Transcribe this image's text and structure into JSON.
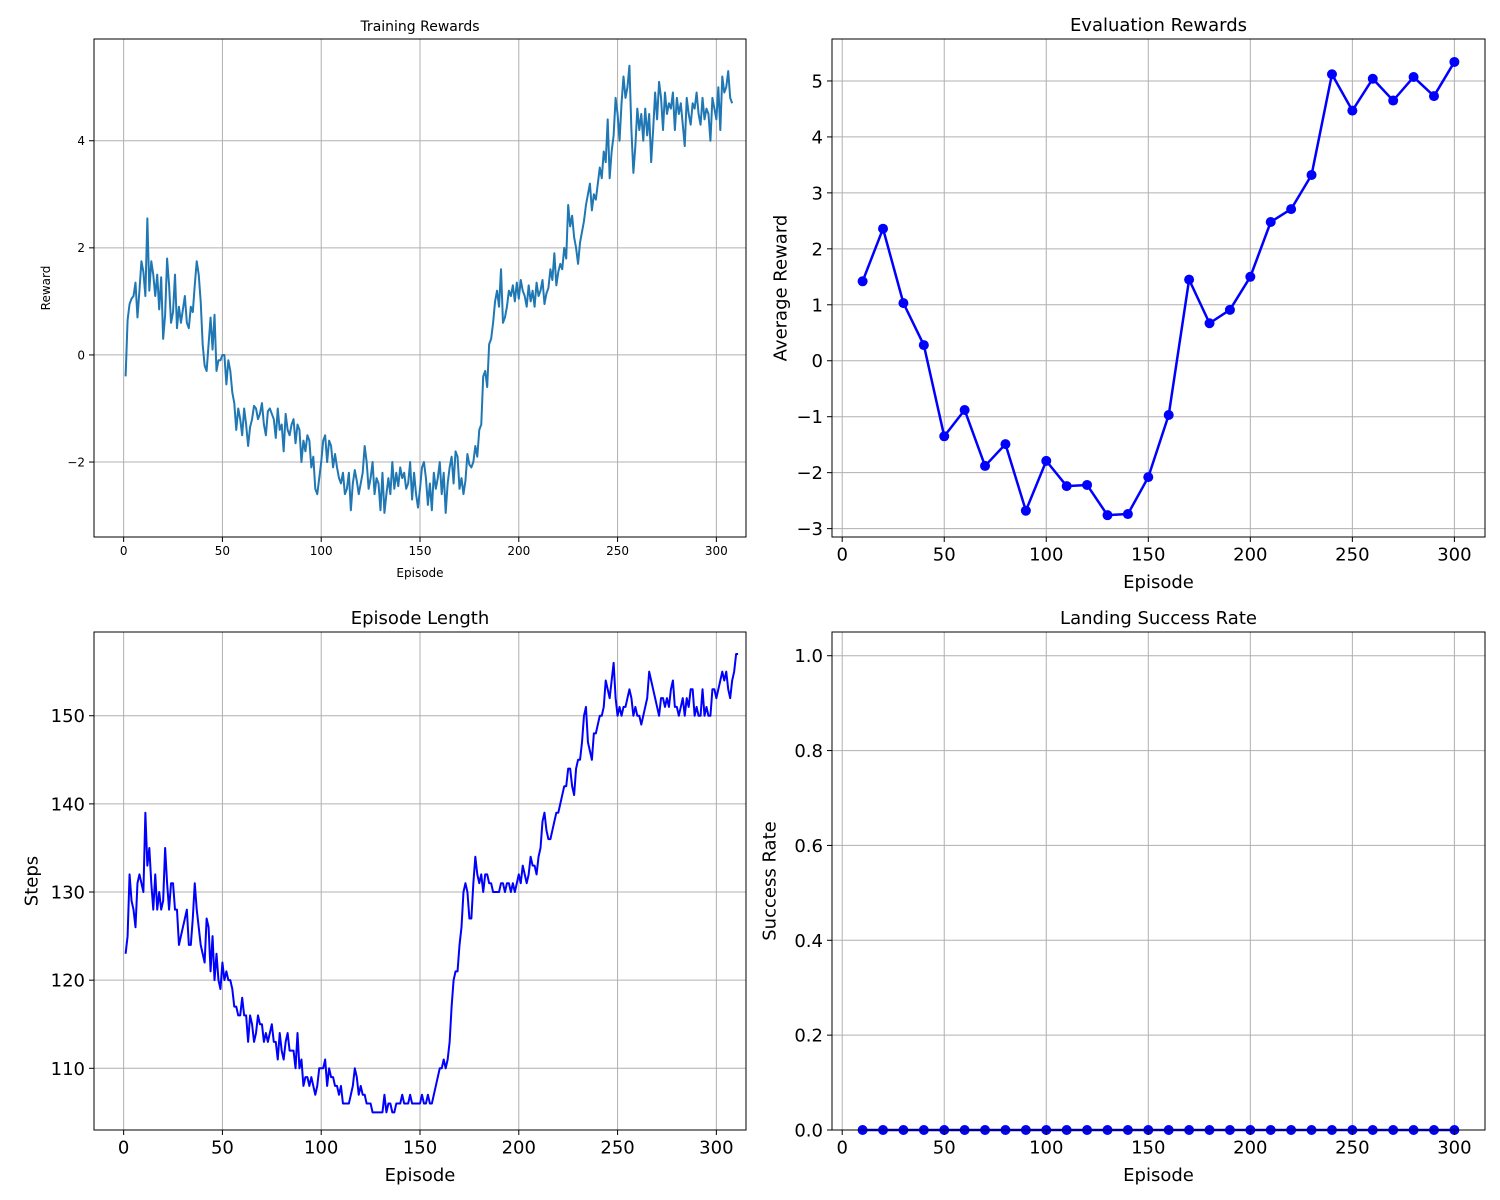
{
  "chart_data": [
    {
      "type": "line",
      "title": "Training Rewards",
      "xlabel": "Episode",
      "ylabel": "Reward",
      "xlim": [
        -15,
        315
      ],
      "ylim": [
        -3.4,
        5.9
      ],
      "xticks": [
        0,
        50,
        100,
        150,
        200,
        250,
        300
      ],
      "yticks": [
        -2,
        0,
        2,
        4
      ],
      "grid": true,
      "color": "#1f77b4",
      "x_start": 1,
      "y": [
        -0.4,
        0.65,
        0.95,
        1.05,
        1.1,
        1.35,
        0.7,
        1.2,
        1.75,
        1.55,
        1.1,
        2.55,
        1.2,
        1.75,
        1.5,
        1.1,
        1.5,
        0.85,
        1.45,
        0.3,
        0.75,
        1.8,
        1.3,
        0.6,
        0.8,
        1.5,
        0.5,
        0.9,
        0.6,
        0.85,
        1.1,
        0.6,
        0.5,
        0.9,
        0.8,
        1.3,
        1.75,
        1.5,
        1.0,
        0.2,
        -0.2,
        -0.3,
        0.2,
        0.7,
        0.1,
        0.75,
        -0.3,
        -0.1,
        -0.1,
        0.0,
        0.0,
        -0.55,
        -0.1,
        -0.3,
        -0.7,
        -0.9,
        -1.4,
        -1.0,
        -1.2,
        -1.5,
        -1.0,
        -1.3,
        -1.7,
        -1.35,
        -1.2,
        -0.95,
        -1.0,
        -1.2,
        -1.1,
        -0.9,
        -1.3,
        -1.5,
        -1.05,
        -1.0,
        -1.1,
        -1.2,
        -1.55,
        -1.0,
        -1.4,
        -1.3,
        -1.8,
        -1.1,
        -1.4,
        -1.5,
        -1.3,
        -1.2,
        -1.65,
        -1.3,
        -1.4,
        -2.0,
        -1.6,
        -1.8,
        -1.5,
        -1.6,
        -2.1,
        -1.9,
        -2.5,
        -2.6,
        -2.3,
        -2.0,
        -1.6,
        -1.5,
        -2.0,
        -1.6,
        -1.7,
        -2.1,
        -1.85,
        -2.1,
        -2.3,
        -2.4,
        -2.2,
        -2.6,
        -2.5,
        -2.2,
        -2.9,
        -2.4,
        -2.15,
        -2.35,
        -2.6,
        -2.4,
        -2.2,
        -1.7,
        -2.0,
        -2.5,
        -2.3,
        -2.0,
        -2.6,
        -2.3,
        -2.4,
        -2.9,
        -2.2,
        -2.95,
        -2.6,
        -2.3,
        -2.6,
        -2.0,
        -2.5,
        -2.2,
        -2.45,
        -2.1,
        -2.3,
        -2.2,
        -2.5,
        -2.4,
        -2.0,
        -2.7,
        -2.2,
        -2.6,
        -2.85,
        -2.5,
        -2.1,
        -2.0,
        -2.3,
        -2.8,
        -2.4,
        -2.9,
        -2.2,
        -2.5,
        -2.3,
        -2.0,
        -2.6,
        -2.2,
        -2.95,
        -2.4,
        -2.1,
        -1.9,
        -2.4,
        -1.8,
        -1.9,
        -2.5,
        -2.3,
        -2.6,
        -2.35,
        -1.85,
        -2.05,
        -2.1,
        -2.0,
        -1.7,
        -1.9,
        -1.4,
        -1.3,
        -0.4,
        -0.3,
        -0.6,
        0.2,
        0.3,
        0.6,
        1.0,
        1.2,
        0.9,
        1.6,
        0.6,
        0.7,
        0.9,
        1.2,
        1.1,
        1.3,
        1.0,
        1.35,
        1.05,
        1.4,
        1.2,
        1.1,
        0.9,
        1.3,
        1.0,
        1.2,
        0.9,
        1.35,
        1.1,
        1.2,
        1.4,
        0.95,
        1.15,
        1.25,
        1.6,
        1.4,
        1.9,
        1.3,
        1.55,
        1.7,
        1.6,
        2.0,
        1.8,
        2.8,
        2.4,
        2.6,
        2.2,
        2.0,
        1.7,
        2.1,
        2.3,
        2.5,
        2.8,
        3.0,
        3.2,
        2.7,
        3.0,
        2.9,
        3.2,
        3.5,
        3.3,
        3.8,
        3.6,
        4.4,
        3.3,
        3.8,
        4.1,
        4.8,
        4.5,
        4.0,
        4.7,
        5.2,
        4.8,
        5.0,
        5.4,
        4.2,
        3.4,
        3.9,
        4.6,
        4.2,
        4.5,
        4.0,
        4.6,
        4.1,
        4.5,
        3.6,
        4.2,
        4.9,
        4.4,
        5.1,
        4.8,
        4.2,
        4.9,
        4.5,
        4.7,
        4.6,
        4.9,
        4.2,
        4.8,
        4.5,
        4.7,
        4.3,
        3.9,
        4.8,
        4.5,
        4.3,
        4.7,
        4.6,
        4.9,
        4.5,
        4.3,
        4.8,
        4.4,
        4.6,
        4.5,
        4.0,
        4.8,
        4.6,
        4.4,
        5.0,
        4.2,
        5.2,
        4.9,
        5.0,
        5.3,
        4.8,
        4.7
      ],
      "position": "top-left"
    },
    {
      "type": "line",
      "title": "Evaluation Rewards",
      "xlabel": "Episode",
      "ylabel": "Average Reward",
      "xlim": [
        -5,
        315
      ],
      "ylim": [
        -3.15,
        5.75
      ],
      "xticks": [
        0,
        50,
        100,
        150,
        200,
        250,
        300
      ],
      "yticks": [
        -3,
        -2,
        -1,
        0,
        1,
        2,
        3,
        4,
        5
      ],
      "grid": true,
      "color": "#0000ff",
      "marker": "circle",
      "x": [
        10,
        20,
        30,
        40,
        50,
        60,
        70,
        80,
        90,
        100,
        110,
        120,
        130,
        140,
        150,
        160,
        170,
        180,
        190,
        200,
        210,
        220,
        230,
        240,
        250,
        260,
        270,
        280,
        290,
        300
      ],
      "y": [
        1.42,
        2.36,
        1.03,
        0.28,
        -1.35,
        -0.88,
        -1.88,
        -1.49,
        -2.68,
        -1.79,
        -2.24,
        -2.22,
        -2.76,
        -2.74,
        -2.08,
        -0.97,
        1.45,
        0.67,
        0.91,
        1.5,
        2.48,
        2.71,
        3.32,
        5.12,
        4.47,
        5.04,
        4.65,
        5.07,
        4.73,
        5.34
      ],
      "position": "top-right"
    },
    {
      "type": "line",
      "title": "Episode Length",
      "xlabel": "Episode",
      "ylabel": "Steps",
      "xlim": [
        -15,
        315
      ],
      "ylim": [
        103,
        159.5
      ],
      "xticks": [
        0,
        50,
        100,
        150,
        200,
        250,
        300
      ],
      "yticks": [
        110,
        120,
        130,
        140,
        150
      ],
      "grid": true,
      "color": "#0000ff",
      "x_start": 1,
      "y": [
        123,
        125,
        132,
        129,
        128,
        126,
        131,
        132,
        131,
        130,
        139,
        133,
        135,
        131,
        128,
        132,
        128,
        130,
        128,
        129,
        135,
        131,
        128,
        131,
        131,
        128,
        128,
        124,
        125,
        126,
        127,
        128,
        124,
        124,
        127,
        131,
        128,
        126,
        124,
        123,
        122,
        127,
        126,
        121,
        125,
        120,
        123,
        120,
        119,
        122,
        120,
        121,
        120,
        120,
        119,
        117,
        117,
        116,
        116,
        118,
        116,
        116,
        113,
        116,
        115,
        113,
        114,
        116,
        115,
        115,
        113,
        114,
        113,
        114,
        115,
        113,
        113,
        111,
        114,
        112,
        111,
        113,
        114,
        112,
        112,
        112,
        110,
        114,
        110,
        111,
        108,
        109,
        109,
        108,
        109,
        108,
        107,
        108,
        110,
        110,
        110,
        111,
        108,
        110,
        109,
        109,
        108,
        108,
        107,
        108,
        106,
        106,
        106,
        106,
        107,
        108,
        110,
        109,
        107,
        108,
        107,
        107,
        106,
        106,
        106,
        105,
        105,
        105,
        105,
        105,
        105,
        107,
        105,
        106,
        106,
        105,
        105,
        106,
        106,
        106,
        107,
        106,
        106,
        106,
        107,
        106,
        106,
        106,
        106,
        106,
        107,
        106,
        106,
        107,
        106,
        106,
        107,
        108,
        109,
        110,
        110,
        111,
        110,
        111,
        113,
        117,
        120,
        121,
        121,
        124,
        126,
        130,
        131,
        130,
        127,
        127,
        131,
        134,
        132,
        131,
        132,
        130,
        132,
        132,
        131,
        131,
        130,
        130,
        130,
        130,
        131,
        131,
        130,
        131,
        131,
        130,
        131,
        130,
        131,
        132,
        131,
        133,
        132,
        131,
        132,
        134,
        133,
        133,
        132,
        134,
        135,
        138,
        139,
        137,
        136,
        136,
        137,
        138,
        139,
        139,
        140,
        141,
        142,
        142,
        144,
        144,
        142,
        141,
        144,
        145,
        145,
        147,
        150,
        151,
        147,
        146,
        145,
        148,
        148,
        149,
        150,
        150,
        151,
        154,
        153,
        152,
        154,
        156,
        152,
        150,
        151,
        150,
        151,
        151,
        152,
        153,
        152,
        150,
        151,
        150,
        150,
        149,
        150,
        151,
        152,
        155,
        154,
        153,
        152,
        151,
        150,
        152,
        152,
        151,
        152,
        151,
        153,
        154,
        151,
        151,
        150,
        151,
        152,
        150,
        152,
        151,
        153,
        153,
        150,
        151,
        150,
        150,
        153,
        150,
        151,
        150,
        150,
        153,
        153,
        152,
        153,
        154,
        155,
        154,
        155,
        153,
        152,
        154,
        155,
        157,
        157
      ],
      "position": "bottom-left"
    },
    {
      "type": "line",
      "title": "Landing Success Rate",
      "xlabel": "Episode",
      "ylabel": "Success Rate",
      "xlim": [
        -5,
        315
      ],
      "ylim": [
        0,
        1.05
      ],
      "xticks": [
        0,
        50,
        100,
        150,
        200,
        250,
        300
      ],
      "yticks": [
        0.0,
        0.2,
        0.4,
        0.6,
        0.8,
        1.0
      ],
      "ytick_decimals": 1,
      "grid": true,
      "color": "#0000ff",
      "marker": "circle",
      "x": [
        10,
        20,
        30,
        40,
        50,
        60,
        70,
        80,
        90,
        100,
        110,
        120,
        130,
        140,
        150,
        160,
        170,
        180,
        190,
        200,
        210,
        220,
        230,
        240,
        250,
        260,
        270,
        280,
        290,
        300
      ],
      "y": [
        0,
        0,
        0,
        0,
        0,
        0,
        0,
        0,
        0,
        0,
        0,
        0,
        0,
        0,
        0,
        0,
        0,
        0,
        0,
        0,
        0,
        0,
        0,
        0,
        0,
        0,
        0,
        0,
        0,
        0
      ],
      "position": "bottom-right"
    }
  ]
}
